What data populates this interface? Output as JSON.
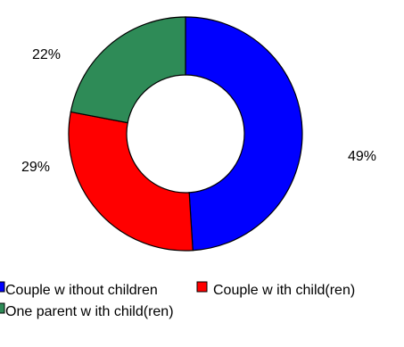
{
  "chart_data": {
    "type": "pie",
    "style": "donut",
    "slices": [
      {
        "label": "Couple w ithout children",
        "value": 49,
        "display": "49%",
        "color": "#0000FF"
      },
      {
        "label": "Couple w ith child(ren)",
        "value": 29,
        "display": "29%",
        "color": "#FF0000"
      },
      {
        "label": "One parent w ith child(ren)",
        "value": 22,
        "display": "22%",
        "color": "#2E8B57"
      }
    ],
    "legend": {
      "position": "bottom",
      "items": [
        "Couple w ithout children",
        "Couple w ith child(ren)",
        "One parent w ith child(ren)"
      ]
    }
  }
}
